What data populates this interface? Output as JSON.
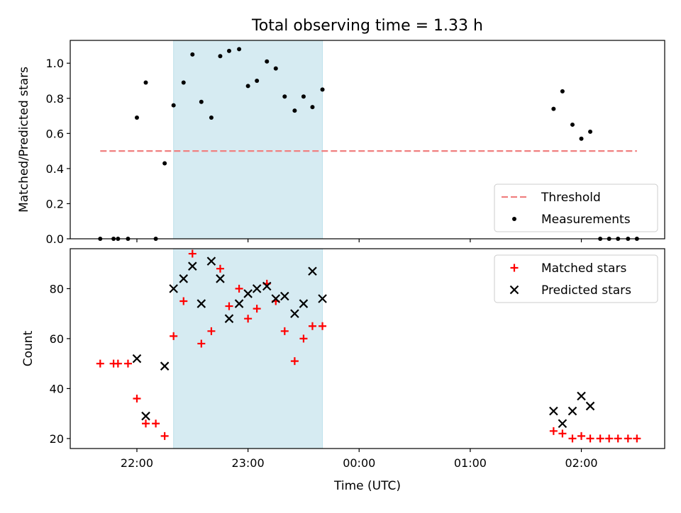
{
  "figure": {
    "title": "Total observing time = 1.33 h"
  },
  "colors": {
    "threshold": "#f08080",
    "measurements": "#000000",
    "matched": "#ff0000",
    "predicted": "#000000",
    "band": "#add8e6"
  },
  "chart_data": [
    {
      "type": "scatter",
      "title": "Total observing time = 1.33 h",
      "xlabel": "",
      "ylabel": "Matched/Predicted stars",
      "x_unit": "hours since 00:00 UTC (negative = previous day)",
      "xlim": [
        -2.6,
        2.75
      ],
      "ylim": [
        0,
        1.13
      ],
      "yticks": [
        0.0,
        0.2,
        0.4,
        0.6,
        0.8,
        1.0
      ],
      "ytick_labels": [
        "0.0",
        "0.2",
        "0.4",
        "0.6",
        "0.8",
        "1.0"
      ],
      "xticks": [
        -2,
        -1,
        0,
        1,
        2
      ],
      "xtick_labels": [
        "",
        "",
        "",
        "",
        ""
      ],
      "shaded_span": [
        -1.67,
        -0.33
      ],
      "legend_position": "lower right",
      "legend": [
        "Threshold",
        "Measurements"
      ],
      "series": [
        {
          "name": "Threshold",
          "kind": "dashed-line",
          "x": [
            -2.33,
            2.5
          ],
          "y": [
            0.5,
            0.5
          ]
        },
        {
          "name": "Measurements",
          "kind": "dots",
          "x": [
            -2.33,
            -2.21,
            -2.17,
            -2.08,
            -2.0,
            -1.92,
            -1.83,
            -1.75,
            -1.67,
            -1.58,
            -1.5,
            -1.42,
            -1.33,
            -1.25,
            -1.17,
            -1.08,
            -1.0,
            -0.92,
            -0.83,
            -0.75,
            -0.67,
            -0.58,
            -0.5,
            -0.42,
            -0.33,
            1.75,
            1.83,
            1.92,
            2.0,
            2.08,
            2.17,
            2.25,
            2.33,
            2.42,
            2.5
          ],
          "y": [
            0.0,
            0.0,
            0.0,
            0.0,
            0.69,
            0.89,
            0.0,
            0.43,
            0.76,
            0.89,
            1.05,
            0.78,
            0.69,
            1.04,
            1.07,
            1.08,
            0.87,
            0.9,
            1.01,
            0.97,
            0.81,
            0.73,
            0.81,
            0.75,
            0.85,
            0.74,
            0.84,
            0.65,
            0.57,
            0.61,
            0.0,
            0.0,
            0.0,
            0.0,
            0.0
          ]
        }
      ]
    },
    {
      "type": "scatter",
      "xlabel": "Time (UTC)",
      "ylabel": "Count",
      "x_unit": "hours since 00:00 UTC (negative = previous day)",
      "xlim": [
        -2.6,
        2.75
      ],
      "ylim": [
        16,
        96
      ],
      "yticks": [
        20,
        40,
        60,
        80
      ],
      "ytick_labels": [
        "20",
        "40",
        "60",
        "80"
      ],
      "xticks": [
        -2,
        -1,
        0,
        1,
        2
      ],
      "xtick_labels": [
        "22:00",
        "23:00",
        "00:00",
        "01:00",
        "02:00"
      ],
      "shaded_span": [
        -1.67,
        -0.33
      ],
      "legend_position": "upper right",
      "legend": [
        "Matched stars",
        "Predicted stars"
      ],
      "series": [
        {
          "name": "Matched stars",
          "marker": "plus",
          "x": [
            -2.33,
            -2.21,
            -2.17,
            -2.08,
            -2.0,
            -1.92,
            -1.83,
            -1.75,
            -1.67,
            -1.58,
            -1.5,
            -1.42,
            -1.33,
            -1.25,
            -1.17,
            -1.08,
            -1.0,
            -0.92,
            -0.83,
            -0.75,
            -0.67,
            -0.58,
            -0.5,
            -0.42,
            -0.33,
            1.75,
            1.83,
            1.92,
            2.0,
            2.08,
            2.17,
            2.25,
            2.33,
            2.42,
            2.5
          ],
          "y": [
            50,
            50,
            50,
            50,
            36,
            26,
            26,
            21,
            61,
            75,
            94,
            58,
            63,
            88,
            73,
            80,
            68,
            72,
            82,
            75,
            63,
            51,
            60,
            65,
            65,
            23,
            22,
            20,
            21,
            20,
            20,
            20,
            20,
            20,
            20
          ]
        },
        {
          "name": "Predicted stars",
          "marker": "x",
          "x": [
            -2.0,
            -1.92,
            -1.75,
            -1.67,
            -1.58,
            -1.5,
            -1.42,
            -1.33,
            -1.25,
            -1.17,
            -1.08,
            -1.0,
            -0.92,
            -0.83,
            -0.75,
            -0.67,
            -0.58,
            -0.5,
            -0.42,
            -0.33,
            1.75,
            1.83,
            1.92,
            2.0,
            2.08
          ],
          "y": [
            52,
            29,
            49,
            80,
            84,
            89,
            74,
            91,
            84,
            68,
            74,
            78,
            80,
            81,
            76,
            77,
            70,
            74,
            87,
            76,
            31,
            26,
            31,
            37,
            33
          ]
        }
      ]
    }
  ]
}
